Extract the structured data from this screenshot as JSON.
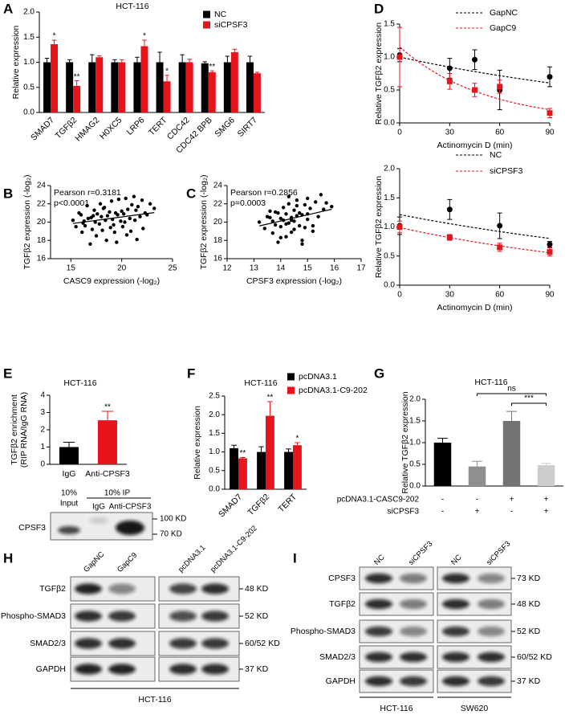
{
  "chart_data": [
    {
      "panel": "A",
      "type": "bar",
      "title": "HCT-116",
      "ylabel": "Relative expression",
      "categories": [
        "SMAD7",
        "TGFβ2",
        "HMAG2",
        "H0XC5",
        "LRP6",
        "TERT",
        "CDC42",
        "CDC42 BPB",
        "SMG6",
        "SIRT7"
      ],
      "series": [
        {
          "name": "NC",
          "color": "#000000",
          "values": [
            1.0,
            1.0,
            1.0,
            1.0,
            1.0,
            1.0,
            1.0,
            0.98,
            1.0,
            1.0
          ],
          "errors": [
            0.08,
            0.05,
            0.15,
            0.05,
            0.1,
            0.2,
            0.15,
            0.03,
            0.12,
            0.12
          ]
        },
        {
          "name": "siCPSF3",
          "color": "#e8141b",
          "values": [
            1.36,
            0.53,
            1.1,
            1.0,
            1.32,
            0.62,
            1.0,
            0.8,
            1.2,
            0.78
          ],
          "errors": [
            0.08,
            0.1,
            0.03,
            0.05,
            0.12,
            0.12,
            0.06,
            0.03,
            0.06,
            0.02
          ],
          "significance": [
            "*",
            "**",
            null,
            null,
            "*",
            "*",
            null,
            "**",
            null,
            null
          ]
        }
      ],
      "ylim": [
        0,
        2
      ],
      "yticks": [
        {
          "value": 0,
          "label": "0.0"
        },
        0.5,
        {
          "value": 1,
          "label": "1.0"
        },
        1.5,
        {
          "value": 2,
          "label": "2.0"
        }
      ]
    },
    {
      "panel": "D",
      "type": "line",
      "ylabel": "Relative TGFβ2 expression",
      "xlabel": "Actinomycin D (min)",
      "x": [
        0,
        30,
        45,
        60,
        90
      ],
      "series": [
        {
          "name": "GapNC",
          "color": "#000000",
          "marker": "circle",
          "values": [
            1.03,
            0.83,
            0.96,
            0.5,
            0.7
          ],
          "errors": [
            0.1,
            0.15,
            0.15,
            0.3,
            0.15
          ]
        },
        {
          "name": "GapC9",
          "color": "#e8141b",
          "marker": "square",
          "values": [
            1.0,
            0.63,
            0.5,
            0.55,
            0.15
          ],
          "errors": [
            0.45,
            0.12,
            0.1,
            0.1,
            0.07
          ]
        }
      ],
      "xlim": [
        0,
        90
      ],
      "xticks": [
        0,
        30,
        60,
        90
      ],
      "ylim": [
        0,
        1.5
      ],
      "yticks": [
        {
          "value": 0,
          "label": "0.0"
        },
        0.5,
        {
          "value": 1,
          "label": "1.0"
        },
        1.5
      ]
    },
    {
      "type": "line",
      "ylabel": "Relative TGFβ2 expression",
      "xlabel": "Actinomycin D (min)",
      "x": [
        0,
        30,
        60,
        90
      ],
      "series": [
        {
          "name": "NC",
          "color": "#000000",
          "marker": "circle",
          "values": [
            1.02,
            1.3,
            1.02,
            0.7
          ],
          "errors": [
            0.15,
            0.17,
            0.22,
            0.05
          ]
        },
        {
          "name": "siCPSF3",
          "color": "#e8141b",
          "marker": "square",
          "values": [
            1.0,
            0.82,
            0.65,
            0.57
          ],
          "errors": [
            0.1,
            0.05,
            0.07,
            0.07
          ]
        }
      ],
      "xlim": [
        0,
        90
      ],
      "xticks": [
        0,
        30,
        60,
        90
      ],
      "ylim": [
        0,
        2
      ],
      "yticks": [
        {
          "value": 0,
          "label": "0.0"
        },
        0.5,
        {
          "value": 1,
          "label": "1.0"
        },
        1.5,
        {
          "value": 2,
          "label": "2.0"
        }
      ]
    },
    {
      "panel": "B",
      "type": "scatter",
      "annotations": [
        "Pearson r=0.3181",
        "p<0.0001"
      ],
      "xlabel": "CASC9 expression (-log₂)",
      "ylabel": "TGFβ2 expression (-log₂)",
      "color": "#000000",
      "trendline": true,
      "x": [
        15.2,
        15.5,
        15.8,
        16.0,
        16.1,
        16.3,
        16.4,
        16.6,
        16.7,
        16.9,
        17.0,
        17.1,
        17.3,
        17.4,
        17.5,
        17.6,
        17.8,
        17.9,
        18.0,
        18.1,
        18.2,
        18.4,
        18.5,
        18.6,
        18.8,
        18.9,
        19.0,
        19.1,
        19.2,
        19.4,
        19.5,
        19.6,
        19.7,
        19.9,
        20.0,
        20.1,
        20.2,
        20.4,
        20.5,
        20.6,
        20.8,
        20.9,
        21.0,
        21.2,
        21.3,
        21.5,
        21.6,
        21.8,
        22.0,
        22.1,
        22.3,
        22.5,
        22.8,
        23.2,
        16.2,
        17.2,
        18.3,
        19.3,
        20.3,
        21.4
      ],
      "values": [
        20.2,
        19.5,
        21.0,
        20.8,
        18.9,
        20.1,
        19.6,
        21.8,
        20.4,
        17.6,
        20.5,
        19.2,
        21.3,
        20.0,
        18.5,
        20.9,
        19.8,
        22.0,
        20.6,
        19.1,
        21.5,
        20.2,
        18.0,
        20.7,
        21.1,
        19.4,
        22.3,
        20.3,
        19.7,
        21.0,
        17.8,
        20.8,
        22.5,
        20.1,
        21.2,
        19.5,
        20.9,
        22.6,
        18.6,
        21.4,
        20.4,
        19.0,
        21.9,
        22.8,
        20.2,
        18.1,
        21.7,
        20.6,
        22.4,
        19.3,
        21.0,
        20.8,
        22.0,
        21.5,
        19.9,
        20.7,
        21.6,
        18.9,
        20.0,
        21.3
      ],
      "xlim": [
        13,
        25
      ],
      "xticks": [
        15,
        20,
        25
      ],
      "ylim": [
        16,
        24
      ],
      "yticks": [
        16,
        18,
        20,
        22,
        24
      ]
    },
    {
      "panel": "C",
      "type": "scatter",
      "annotations": [
        "Pearson r=0.2856",
        "p=0.0003"
      ],
      "xlabel": "CPSF3 expression (-log₂)",
      "ylabel": "TGFβ2 expression (-log₂)",
      "color": "#000000",
      "trendline": true,
      "x": [
        13.2,
        13.4,
        13.5,
        13.6,
        13.7,
        13.7,
        13.8,
        13.9,
        13.9,
        14.0,
        14.0,
        14.1,
        14.1,
        14.2,
        14.2,
        14.3,
        14.3,
        14.4,
        14.4,
        14.5,
        14.5,
        14.5,
        14.6,
        14.6,
        14.7,
        14.7,
        14.8,
        14.8,
        14.9,
        14.9,
        15.0,
        15.0,
        15.1,
        15.2,
        15.3,
        15.4,
        15.5,
        15.6,
        15.7,
        15.9,
        13.6,
        13.8,
        14.0,
        14.2,
        14.4,
        14.6,
        14.8,
        15.0,
        15.2,
        14.3
      ],
      "values": [
        20.0,
        19.3,
        20.6,
        21.2,
        18.8,
        20.1,
        19.7,
        21.0,
        17.8,
        20.4,
        19.5,
        21.6,
        20.2,
        18.4,
        20.9,
        19.9,
        22.0,
        20.5,
        18.9,
        21.3,
        20.1,
        19.2,
        22.4,
        20.7,
        19.6,
        21.0,
        17.6,
        20.8,
        21.9,
        19.4,
        22.6,
        20.3,
        21.5,
        19.0,
        22.2,
        20.6,
        23.0,
        21.4,
        22.1,
        21.7,
        20.5,
        21.1,
        18.3,
        19.8,
        20.2,
        21.8,
        18.0,
        20.9,
        19.6,
        22.8
      ],
      "xlim": [
        12,
        17
      ],
      "xticks": [
        12,
        13,
        14,
        15,
        16,
        17
      ],
      "ylim": [
        16,
        24
      ],
      "yticks": [
        16,
        18,
        20,
        22,
        24
      ]
    },
    {
      "panel": "E",
      "type": "bar",
      "title": "HCT-116",
      "ylabel": [
        "TGFβ2 enrichment",
        "(RIP RNA/IgG RNA)"
      ],
      "categories": [
        "IgG",
        "Anti-CPSF3"
      ],
      "values": [
        1.0,
        2.55
      ],
      "errors": [
        0.28,
        0.52
      ],
      "colors": [
        "#000000",
        "#e8141b"
      ],
      "significance": [
        null,
        "**"
      ],
      "ylim": [
        0,
        4
      ],
      "yticks": [
        0,
        1,
        2,
        3,
        4
      ]
    },
    {
      "panel": "F",
      "type": "bar",
      "title": "HCT-116",
      "ylabel": "Relative expression",
      "categories": [
        "SMAD7",
        "TGFβ2",
        "TERT"
      ],
      "series": [
        {
          "name": "pcDNA3.1",
          "color": "#000000",
          "values": [
            1.1,
            1.0,
            1.0
          ],
          "errors": [
            0.08,
            0.14,
            0.08
          ]
        },
        {
          "name": "pcDNA3.1-C9-202",
          "color": "#e8141b",
          "values": [
            0.83,
            1.97,
            1.18
          ],
          "errors": [
            0.02,
            0.38,
            0.07
          ],
          "significance": [
            "**",
            "**",
            "*"
          ]
        }
      ],
      "ylim": [
        0,
        2.5
      ],
      "yticks": [
        {
          "value": 0,
          "label": "0.0"
        },
        0.5,
        {
          "value": 1,
          "label": "1.0"
        },
        1.5,
        {
          "value": 2,
          "label": "2.0"
        },
        2.5
      ]
    },
    {
      "panel": "G",
      "type": "bar",
      "title": "HCT-116",
      "ylabel": "Relative TGFβ2 expression",
      "values": [
        1.0,
        0.45,
        1.5,
        0.48
      ],
      "errors": [
        0.1,
        0.12,
        0.22,
        0.04
      ],
      "colors": [
        "#000000",
        "#8f8f8f",
        "#737373",
        "#cdcdcd"
      ],
      "brackets": [
        "ns",
        "***"
      ],
      "conditions": [
        {
          "label": "pcDNA3.1-CASC9-202",
          "signs": [
            "-",
            "-",
            "+",
            "+"
          ]
        },
        {
          "label": "siCPSF3",
          "signs": [
            "-",
            "+",
            "-",
            "+"
          ]
        }
      ],
      "ylim": [
        0,
        2
      ],
      "yticks": [
        {
          "value": 0,
          "label": "0.0"
        },
        0.5,
        {
          "value": 1,
          "label": "1.0"
        },
        1.5,
        {
          "value": 2,
          "label": "2.0"
        }
      ]
    }
  ],
  "rip_blot": {
    "input": [
      "10%",
      "Input"
    ],
    "ip": "10% IP",
    "lanes": [
      "IgG",
      "Anti-CPSF3"
    ],
    "protein": "CPSF3",
    "markers": [
      "100 KD",
      "70 KD"
    ]
  },
  "blot_H": {
    "panel": "H",
    "lanes": [
      "GapNC",
      "GapC9",
      "pcDNA3.1",
      "pcDNA3.1-C9-202"
    ],
    "rows": [
      {
        "label": "TGFβ2",
        "size": "48 KD"
      },
      {
        "label": "Phospho-SMAD3",
        "size": "52 KD"
      },
      {
        "label": "SMAD2/3",
        "size": "60/52 KD"
      },
      {
        "label": "GAPDH",
        "size": "37 KD"
      }
    ],
    "cell_line": "HCT-116"
  },
  "blot_I": {
    "panel": "I",
    "lanes": [
      "NC",
      "siCPSF3",
      "NC",
      "siCPSF3"
    ],
    "rows": [
      {
        "label": "CPSF3",
        "size": "73 KD"
      },
      {
        "label": "TGFβ2",
        "size": "48 KD"
      },
      {
        "label": "Phospho-SMAD3",
        "size": "52 KD"
      },
      {
        "label": "SMAD2/3",
        "size": "60/52 KD"
      },
      {
        "label": "GAPDH",
        "size": "37 KD"
      }
    ],
    "cell_lines": [
      "HCT-116",
      "SW620"
    ]
  }
}
